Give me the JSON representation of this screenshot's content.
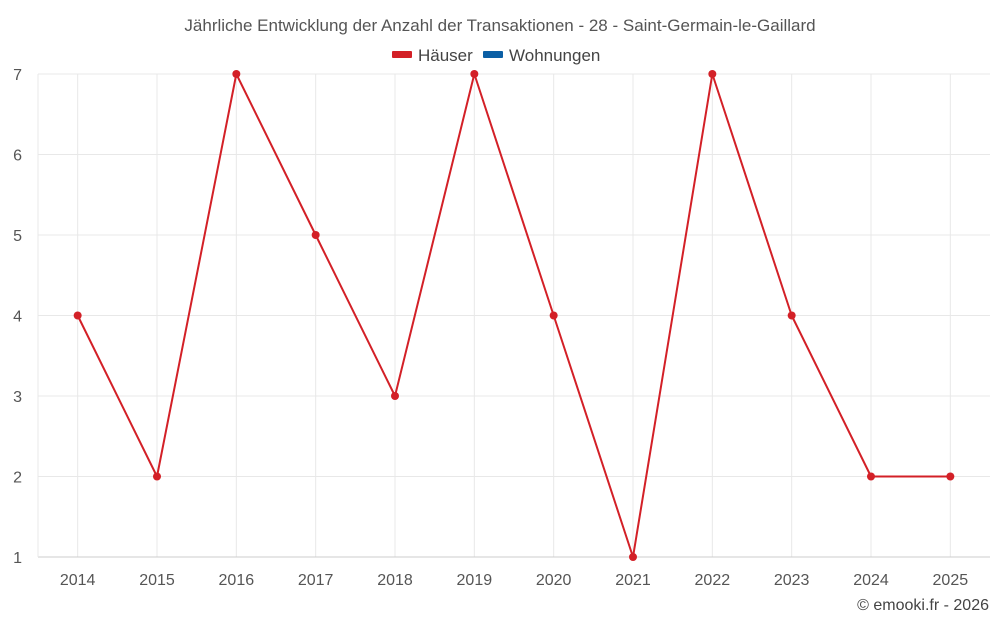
{
  "chart_data": {
    "type": "line",
    "title": "Jährliche Entwicklung der Anzahl der Transaktionen - 28 - Saint-Germain-le-Gaillard",
    "xlabel": "",
    "ylabel": "",
    "categories": [
      "2014",
      "2015",
      "2016",
      "2017",
      "2018",
      "2019",
      "2020",
      "2021",
      "2022",
      "2023",
      "2024",
      "2025"
    ],
    "ylim": [
      1,
      7
    ],
    "yticks": [
      "1",
      "2",
      "3",
      "4",
      "5",
      "6",
      "7"
    ],
    "grid": true,
    "legend_position": "top-center",
    "legend": [
      {
        "name": "Häuser",
        "color": "#d32027"
      },
      {
        "name": "Wohnungen",
        "color": "#0b5fa5"
      }
    ],
    "series": [
      {
        "name": "Häuser",
        "color": "#d32027",
        "values": [
          4,
          2,
          7,
          5,
          3,
          7,
          4,
          1,
          7,
          4,
          2,
          2
        ]
      }
    ]
  },
  "credit": "© emooki.fr - 2026"
}
